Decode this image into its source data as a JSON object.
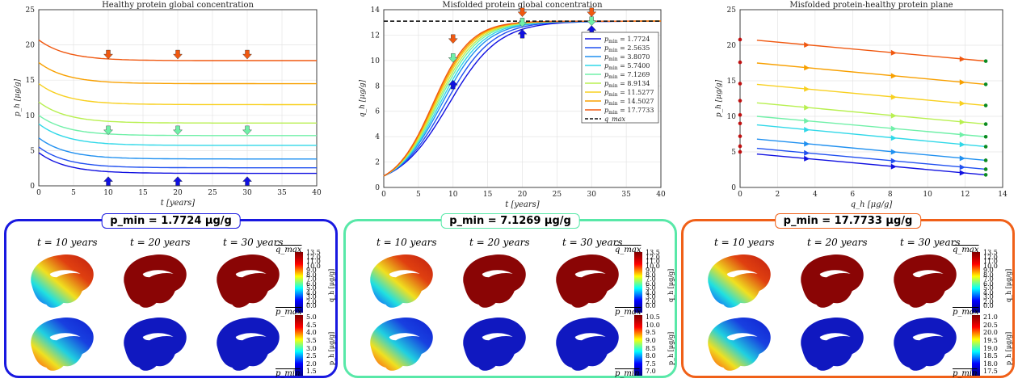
{
  "colors": [
    "#1010e0",
    "#2050f0",
    "#2090f0",
    "#30d8e8",
    "#70f0a8",
    "#b8f050",
    "#f8d020",
    "#f8a000",
    "#f05810"
  ],
  "chart_data": [
    {
      "type": "line",
      "title": "Healthy protein global concentration",
      "xlabel": "t [years]",
      "ylabel": "p_h [μg/g]",
      "xlim": [
        0,
        40
      ],
      "ylim": [
        0,
        25
      ],
      "xticks": [
        "0",
        "5",
        "10",
        "15",
        "20",
        "25",
        "30",
        "35",
        "40"
      ],
      "yticks": [
        "0",
        "5",
        "10",
        "15",
        "20",
        "25"
      ],
      "grid": true,
      "series": [
        {
          "name": "p_min = 1.7724",
          "start": 4.7,
          "end": 1.77
        },
        {
          "name": "p_min = 2.5635",
          "start": 5.5,
          "end": 2.56
        },
        {
          "name": "p_min = 3.8070",
          "start": 6.8,
          "end": 3.81
        },
        {
          "name": "p_min = 5.7400",
          "start": 8.8,
          "end": 5.74
        },
        {
          "name": "p_min = 7.1269",
          "start": 10.0,
          "end": 7.13
        },
        {
          "name": "p_min = 8.9134",
          "start": 11.9,
          "end": 8.91
        },
        {
          "name": "p_min = 11.5277",
          "start": 14.5,
          "end": 11.53
        },
        {
          "name": "p_min = 14.5027",
          "start": 17.5,
          "end": 14.5
        },
        {
          "name": "p_min = 17.7733",
          "start": 20.7,
          "end": 17.77
        }
      ]
    },
    {
      "type": "line",
      "title": "Misfolded protein global concentration",
      "xlabel": "t [years]",
      "ylabel": "q_h [μg/g]",
      "xlim": [
        0,
        40
      ],
      "ylim": [
        0,
        14
      ],
      "xticks": [
        "0",
        "5",
        "10",
        "15",
        "20",
        "25",
        "30",
        "35",
        "40"
      ],
      "yticks": [
        "0",
        "2",
        "4",
        "6",
        "8",
        "10",
        "12",
        "14"
      ],
      "grid": true,
      "legend": "right",
      "q_max": 13.1,
      "q_max_label": "q_max",
      "series": [
        {
          "name": "p_min = 1.7724",
          "label_value": "1.7724",
          "rate": 0.148
        },
        {
          "name": "p_min = 2.5635",
          "label_value": "2.5635",
          "rate": 0.157
        },
        {
          "name": "p_min = 3.8070",
          "label_value": "3.8070",
          "rate": 0.166
        },
        {
          "name": "p_min = 5.7400",
          "label_value": "5.7400",
          "rate": 0.172
        },
        {
          "name": "p_min = 7.1269",
          "label_value": "7.1269",
          "rate": 0.178
        },
        {
          "name": "p_min = 8.9134",
          "label_value": "8.9134",
          "rate": 0.183
        },
        {
          "name": "p_min = 11.5277",
          "label_value": "11.5277",
          "rate": 0.188
        },
        {
          "name": "p_min = 14.5027",
          "label_value": "14.5027",
          "rate": 0.192
        },
        {
          "name": "p_min = 17.7733",
          "label_value": "17.7733",
          "rate": 0.196
        }
      ]
    },
    {
      "type": "line",
      "title": "Misfolded protein-healthy protein plane",
      "xlabel": "q_h [μg/g]",
      "ylabel": "p_h [μg/g]",
      "xlim": [
        0,
        14
      ],
      "ylim": [
        0,
        25
      ],
      "xticks": [
        "0",
        "2",
        "4",
        "6",
        "8",
        "10",
        "12",
        "14"
      ],
      "yticks": [
        "0",
        "5",
        "10",
        "15",
        "20",
        "25"
      ],
      "grid": true,
      "series": [
        {
          "q0": 0.9,
          "p0": 4.7,
          "p_end": 1.77
        },
        {
          "q0": 0.9,
          "p0": 5.5,
          "p_end": 2.56
        },
        {
          "q0": 0.9,
          "p0": 6.8,
          "p_end": 3.81
        },
        {
          "q0": 0.9,
          "p0": 8.8,
          "p_end": 5.74
        },
        {
          "q0": 0.9,
          "p0": 10.0,
          "p_end": 7.13
        },
        {
          "q0": 0.9,
          "p0": 11.9,
          "p_end": 8.91
        },
        {
          "q0": 0.9,
          "p0": 14.5,
          "p_end": 11.53
        },
        {
          "q0": 0.9,
          "p0": 17.5,
          "p_end": 14.5
        },
        {
          "q0": 0.9,
          "p0": 20.7,
          "p_end": 17.77
        }
      ],
      "initial_points_p": [
        5.0,
        5.8,
        7.2,
        9.0,
        10.2,
        12.2,
        14.6,
        17.6,
        20.8
      ],
      "final_q": 13.1
    }
  ],
  "panels": [
    {
      "title": "p_min = 1.7724 μg/g",
      "color": "#1818e0",
      "cols": [
        "t = 10 years",
        "t = 20 years",
        "t = 30 years"
      ],
      "q_ticks": [
        "13.5",
        "12.0",
        "11.0",
        "10.0",
        "9.0",
        "8.0",
        "7.0",
        "6.0",
        "5.0",
        "4.0",
        "3.0",
        "2.0",
        "",
        "0.0"
      ],
      "p_ticks": [
        "5.0",
        "4.5",
        "4.0",
        "3.5",
        "3.0",
        "2.5",
        "2.0",
        "1.5"
      ],
      "q_label": "q_h [μg/g]",
      "p_label": "p_h [μg/g]",
      "q_end": "q_max",
      "p_top": "p_max",
      "p_bot": "p_min"
    },
    {
      "title": "p_min = 7.1269 μg/g",
      "color": "#58e8a8",
      "cols": [
        "t = 10 years",
        "t = 20 years",
        "t = 30 years"
      ],
      "q_ticks": [
        "13.5",
        "12.0",
        "11.0",
        "10.0",
        "9.0",
        "8.0",
        "7.0",
        "6.0",
        "5.0",
        "4.0",
        "3.0",
        "2.0",
        "",
        "0.0"
      ],
      "p_ticks": [
        "10.5",
        "10.0",
        "9.5",
        "9.0",
        "8.5",
        "8.0",
        "7.5",
        "7.0"
      ],
      "q_label": "q_h [μg/g]",
      "p_label": "p_h [μg/g]",
      "q_end": "q_max",
      "p_top": "p_max",
      "p_bot": "p_min"
    },
    {
      "title": "p_min = 17.7733 μg/g",
      "color": "#f06018",
      "cols": [
        "t = 10 years",
        "t = 20 years",
        "t = 30 years"
      ],
      "q_ticks": [
        "13.5",
        "12.0",
        "11.0",
        "10.0",
        "9.0",
        "8.0",
        "7.0",
        "6.0",
        "5.0",
        "4.0",
        "3.0",
        "2.0",
        "",
        "0.0"
      ],
      "p_ticks": [
        "21.0",
        "20.5",
        "20.0",
        "19.5",
        "19.0",
        "18.5",
        "18.0",
        "17.5"
      ],
      "q_label": "q_h [μg/g]",
      "p_label": "p_h [μg/g]",
      "q_end": "q_max",
      "p_top": "p_max",
      "p_bot": "p_min"
    }
  ]
}
